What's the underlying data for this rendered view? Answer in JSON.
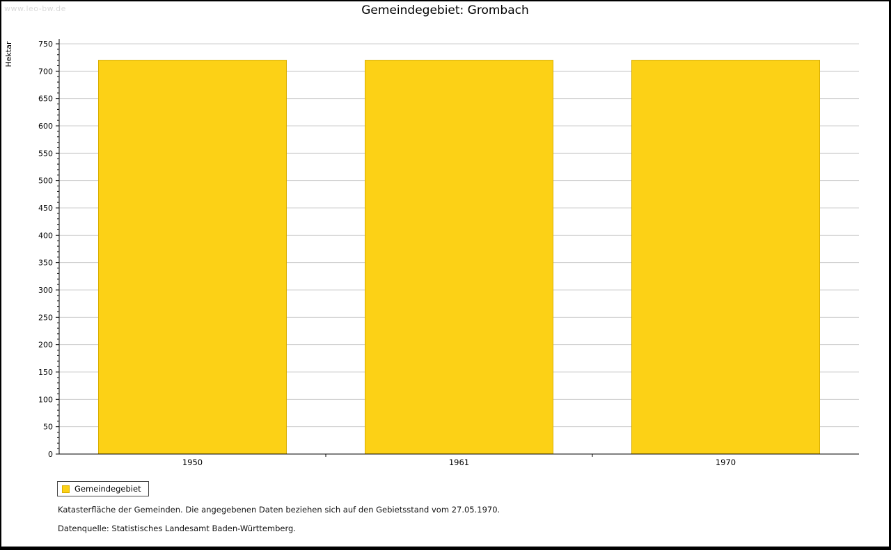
{
  "watermark": "www.leo-bw.de",
  "title": "Gemeindegebiet: Grombach",
  "chart_data": {
    "type": "bar",
    "title": "Gemeindegebiet: Grombach",
    "categories": [
      "1950",
      "1961",
      "1970"
    ],
    "series": [
      {
        "name": "Gemeindegebiet",
        "values": [
          720,
          720,
          720
        ]
      }
    ],
    "xlabel": "",
    "ylabel": "Hektar",
    "ylim": [
      0,
      750
    ],
    "y_major_step": 50,
    "y_minor_step": 10,
    "grid": true,
    "legend_position": "bottom-left",
    "bar_color": "#FCD116",
    "bar_border_color": "#D9AE00",
    "grid_color": "#cccccc",
    "axis_color": "#000000"
  },
  "footer": {
    "line1": "Katasterfläche der Gemeinden. Die angegebenen Daten beziehen sich auf den Gebietsstand vom 27.05.1970.",
    "line2": "Datenquelle: Statistisches Landesamt Baden-Württemberg."
  }
}
